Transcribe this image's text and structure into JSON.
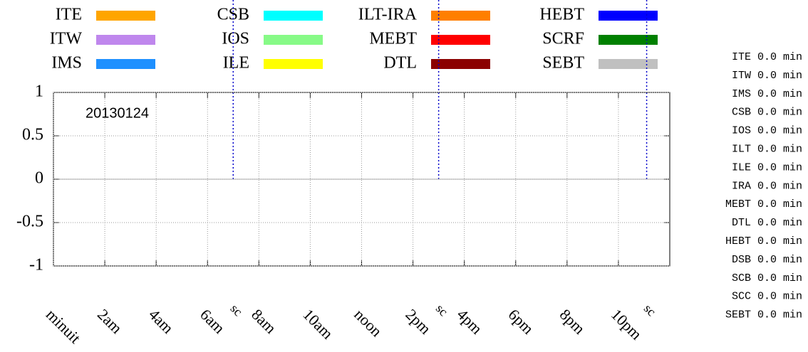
{
  "chart_data": {
    "type": "line",
    "annotation": "20130124",
    "series": [
      {
        "name": "ITE",
        "color": "#ffa500"
      },
      {
        "name": "ITW",
        "color": "#bf87ed"
      },
      {
        "name": "IMS",
        "color": "#1e90ff"
      },
      {
        "name": "CSB",
        "color": "#00ffff"
      },
      {
        "name": "IOS",
        "color": "#87fa87"
      },
      {
        "name": "ILE",
        "color": "#ffff00"
      },
      {
        "name": "ILT-IRA",
        "color": "#ff7f00"
      },
      {
        "name": "MEBT",
        "color": "#ff0000"
      },
      {
        "name": "DTL",
        "color": "#8b0000"
      },
      {
        "name": "HEBT",
        "color": "#0000ff"
      },
      {
        "name": "SCRF",
        "color": "#008000"
      },
      {
        "name": "SEBT",
        "color": "#c0c0c0"
      }
    ],
    "xlim": [
      0,
      24
    ],
    "xticks": [
      {
        "value": 0,
        "label": "minuit"
      },
      {
        "value": 2,
        "label": "2am"
      },
      {
        "value": 4,
        "label": "4am"
      },
      {
        "value": 6,
        "label": "6am"
      },
      {
        "value": 8,
        "label": "8am"
      },
      {
        "value": 10,
        "label": "10am"
      },
      {
        "value": 12,
        "label": "noon"
      },
      {
        "value": 14,
        "label": "2pm"
      },
      {
        "value": 16,
        "label": "4pm"
      },
      {
        "value": 18,
        "label": "6pm"
      },
      {
        "value": 20,
        "label": "8pm"
      },
      {
        "value": 22,
        "label": "10pm"
      }
    ],
    "ylim": [
      -1,
      1
    ],
    "yticks": [
      1,
      0.5,
      0,
      -0.5,
      -1
    ],
    "grid": true,
    "markers": [
      {
        "x": 7.0,
        "label": "sc"
      },
      {
        "x": 15.0,
        "label": "sc"
      },
      {
        "x": 23.1,
        "label": "sc"
      }
    ],
    "marker_color": "#0000cc",
    "summary": [
      "ITE 0.0 min",
      "ITW 0.0 min",
      "IMS 0.0 min",
      "CSB 0.0 min",
      "IOS 0.0 min",
      "ILT 0.0 min",
      "ILE 0.0 min",
      "IRA 0.0 min",
      "MEBT 0.0 min",
      "DTL 0.0 min",
      "HEBT 0.0 min",
      "DSB 0.0 min",
      "SCB 0.0 min",
      "SCC 0.0 min",
      "SEBT 0.0 min"
    ]
  }
}
